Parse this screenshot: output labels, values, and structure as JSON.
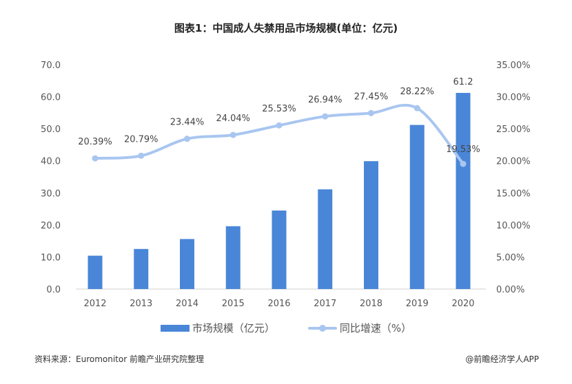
{
  "chart_data": {
    "type": "bar+line",
    "title": "图表1：中国成人失禁用品市场规模(单位：亿元)",
    "categories": [
      "2012",
      "2013",
      "2014",
      "2015",
      "2016",
      "2017",
      "2018",
      "2019",
      "2020"
    ],
    "series": [
      {
        "name": "市场规模（亿元）",
        "type": "bar",
        "axis": "left",
        "color": "#4a86d8",
        "values": [
          10.4,
          12.5,
          15.6,
          19.6,
          24.5,
          31.1,
          39.9,
          51.2,
          61.2
        ],
        "data_labels": [
          "",
          "",
          "",
          "",
          "",
          "",
          "",
          "",
          "61.2"
        ]
      },
      {
        "name": "同比增速（%）",
        "type": "line",
        "axis": "right",
        "color": "#a8c6f0",
        "values": [
          20.39,
          20.79,
          23.44,
          24.04,
          25.53,
          26.94,
          27.45,
          28.22,
          19.53
        ],
        "data_labels": [
          "20.39%",
          "20.79%",
          "23.44%",
          "24.04%",
          "25.53%",
          "26.94%",
          "27.45%",
          "28.22%",
          "19.53%"
        ]
      }
    ],
    "ylim_left": [
      0,
      70
    ],
    "yticks_left": [
      "0.0",
      "10.0",
      "20.0",
      "30.0",
      "40.0",
      "50.0",
      "60.0",
      "70.0"
    ],
    "ylim_right": [
      0,
      35
    ],
    "yticks_right": [
      "0.00%",
      "5.00%",
      "10.00%",
      "15.00%",
      "20.00%",
      "25.00%",
      "30.00%",
      "35.00%"
    ],
    "grid": false,
    "legend": "bottom"
  },
  "footer": {
    "source": "资料来源：Euromonitor 前瞻产业研究院整理",
    "credit": "@前瞻经济学人APP"
  },
  "watermark": "前瞻产业研究院"
}
